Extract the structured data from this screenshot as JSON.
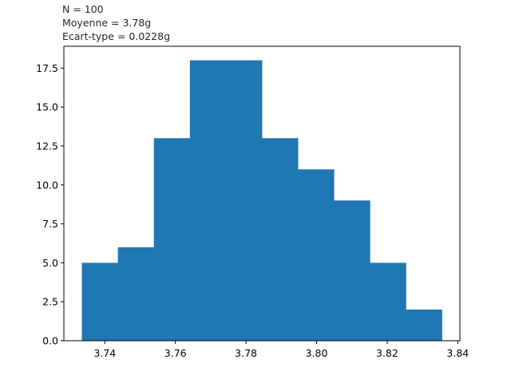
{
  "stats": {
    "n": "N = 100",
    "mean": "Moyenne = 3.78g",
    "std": "Ecart-type = 0.0228g"
  },
  "chart_data": {
    "type": "bar",
    "subtype": "histogram",
    "bin_edges": [
      3.7335,
      3.7437,
      3.7539,
      3.7641,
      3.7743,
      3.7845,
      3.7947,
      3.8049,
      3.8151,
      3.8253,
      3.8355
    ],
    "counts": [
      5,
      6,
      13,
      18,
      18,
      13,
      11,
      9,
      5,
      2
    ],
    "xlim": [
      3.7284,
      3.8406
    ],
    "ylim": [
      0,
      18.9
    ],
    "xticks": [
      3.74,
      3.76,
      3.78,
      3.8,
      3.82,
      3.84
    ],
    "xtick_labels": [
      "3.74",
      "3.76",
      "3.78",
      "3.80",
      "3.82",
      "3.84"
    ],
    "yticks": [
      0,
      2.5,
      5,
      7.5,
      10,
      12.5,
      15,
      17.5
    ],
    "ytick_labels": [
      "0.0",
      "2.5",
      "5.0",
      "7.5",
      "10.0",
      "12.5",
      "15.0",
      "17.5"
    ],
    "bar_color": "#1f77b4",
    "grid": false,
    "title": "",
    "xlabel": "",
    "ylabel": ""
  }
}
